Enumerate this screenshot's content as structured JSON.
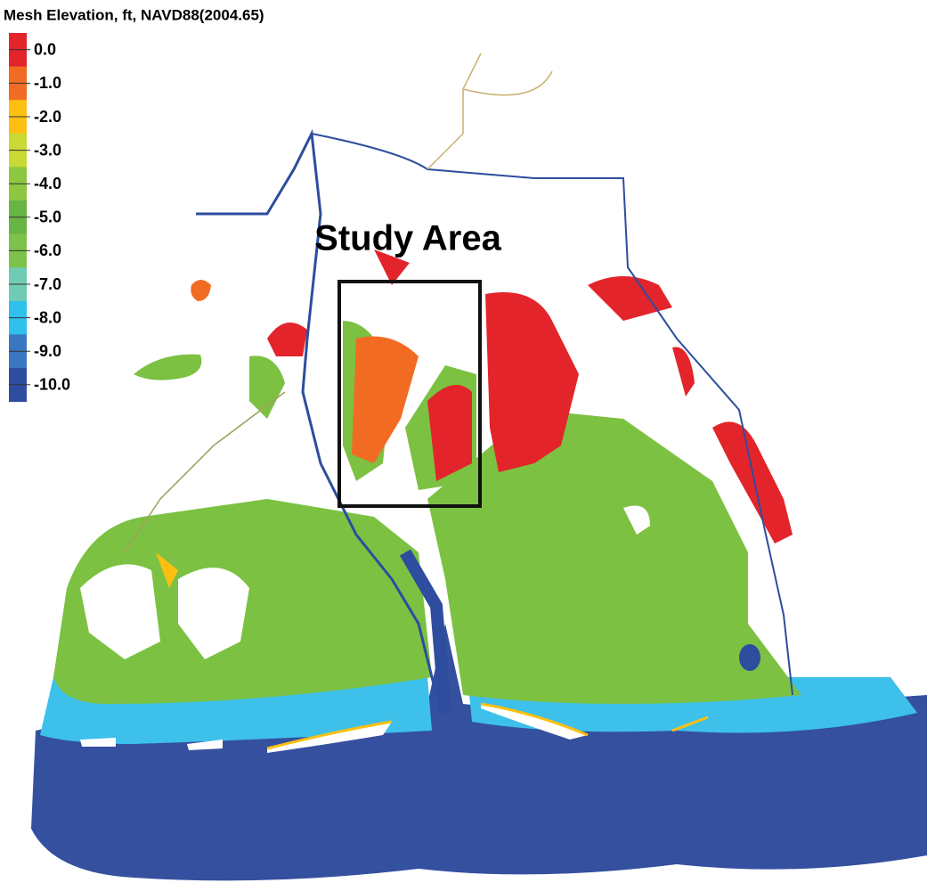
{
  "legend": {
    "title": "Mesh Elevation, ft, NAVD88(2004.65)",
    "entries": [
      {
        "label": "0.0",
        "color": "#e3242b"
      },
      {
        "label": "-1.0",
        "color": "#f26b22"
      },
      {
        "label": "-2.0",
        "color": "#fdc010"
      },
      {
        "label": "-3.0",
        "color": "#c9d935"
      },
      {
        "label": "-4.0",
        "color": "#8dc63f"
      },
      {
        "label": "-5.0",
        "color": "#68b445"
      },
      {
        "label": "-6.0",
        "color": "#7dc24a"
      },
      {
        "label": "-7.0",
        "color": "#6fcbb2"
      },
      {
        "label": "-8.0",
        "color": "#2fc0ec"
      },
      {
        "label": "-9.0",
        "color": "#3a76c2"
      },
      {
        "label": "-10.0",
        "color": "#2e4d9e"
      }
    ]
  },
  "annotation": {
    "label": "Study Area"
  }
}
